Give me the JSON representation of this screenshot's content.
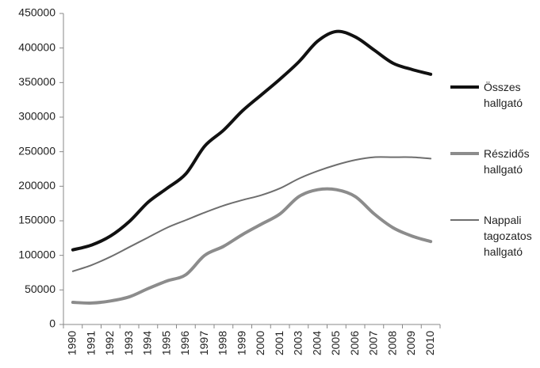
{
  "chart_data": {
    "type": "line",
    "categories": [
      "1990",
      "1991",
      "1992",
      "1993",
      "1994",
      "1995",
      "1996",
      "1997",
      "1998",
      "1999",
      "2000",
      "2001",
      "2003",
      "2004",
      "2005",
      "2006",
      "2007",
      "2008",
      "2009",
      "2010"
    ],
    "series": [
      {
        "name": "Összes hallgató",
        "color": "#111111",
        "width": 4,
        "values": [
          108000,
          115000,
          128000,
          149000,
          177000,
          197000,
          218000,
          258000,
          281000,
          309000,
          332000,
          355000,
          380000,
          410000,
          424000,
          416000,
          397000,
          378000,
          369000,
          362000
        ]
      },
      {
        "name": "Részidős hallgató",
        "color": "#8c8c8c",
        "width": 4,
        "values": [
          32000,
          31000,
          34000,
          40000,
          52000,
          63000,
          72000,
          100000,
          113000,
          130000,
          145000,
          160000,
          185000,
          195000,
          195000,
          185000,
          160000,
          140000,
          128000,
          120000
        ]
      },
      {
        "name": "Nappali tagozatos hallgató",
        "color": "#6e6e6e",
        "width": 2,
        "values": [
          77000,
          86000,
          98000,
          112000,
          126000,
          140000,
          151000,
          162000,
          172000,
          180000,
          187000,
          197000,
          211000,
          222000,
          231000,
          238000,
          242000,
          242000,
          242000,
          240000
        ]
      }
    ],
    "ylim": [
      0,
      450000
    ],
    "yticks": [
      0,
      50000,
      100000,
      150000,
      200000,
      250000,
      300000,
      350000,
      400000,
      450000
    ],
    "grid": false
  }
}
